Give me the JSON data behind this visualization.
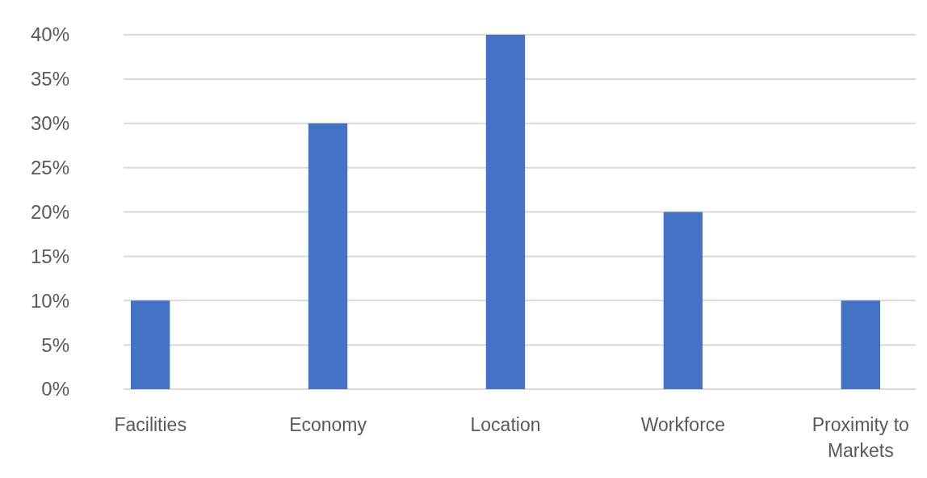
{
  "chart_data": {
    "type": "bar",
    "categories": [
      "Facilities",
      "Economy",
      "Location",
      "Workforce",
      "Proximity to Markets"
    ],
    "values": [
      10,
      30,
      40,
      20,
      10
    ],
    "color": "#4472c4",
    "ylim": [
      0,
      40
    ],
    "yticks": [
      {
        "value": 0,
        "label": "0%"
      },
      {
        "value": 5,
        "label": "5%"
      },
      {
        "value": 10,
        "label": "10%"
      },
      {
        "value": 15,
        "label": "15%"
      },
      {
        "value": 20,
        "label": "20%"
      },
      {
        "value": 25,
        "label": "25%"
      },
      {
        "value": 30,
        "label": "30%"
      },
      {
        "value": 35,
        "label": "35%"
      },
      {
        "value": 40,
        "label": "40%"
      }
    ],
    "grid": true
  }
}
